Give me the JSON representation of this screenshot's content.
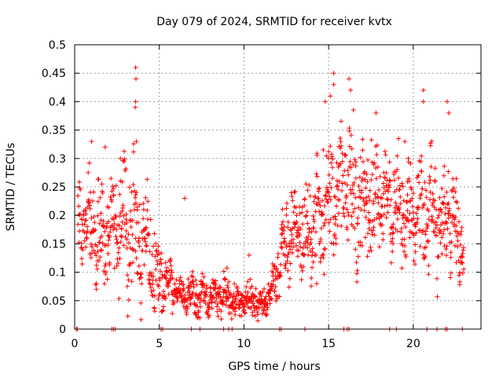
{
  "chart_data": {
    "type": "scatter",
    "title": "Day 079 of 2024, SRMTID for receiver kvtx",
    "xlabel": "GPS time / hours",
    "ylabel": "SRMTID / TECUs",
    "xlim": [
      0,
      24
    ],
    "ylim": [
      0,
      0.5
    ],
    "xticks": [
      0,
      5,
      10,
      15,
      20
    ],
    "xtick_labels": [
      "0",
      "5",
      "10",
      "15",
      "20"
    ],
    "yticks": [
      0,
      0.05,
      0.1,
      0.15,
      0.2,
      0.25,
      0.3,
      0.35,
      0.4,
      0.45,
      0.5
    ],
    "ytick_labels": [
      "0",
      "0.05",
      "0.1",
      "0.15",
      "0.2",
      "0.25",
      "0.3",
      "0.35",
      "0.4",
      "0.45",
      "0.5"
    ],
    "grid": true,
    "marker": "+",
    "color": "#ff0000",
    "profile": {
      "note": "approximate median SRMTID vs hour (data values read off the plot)",
      "x": [
        0,
        0.5,
        1,
        1.5,
        2,
        2.5,
        3,
        3.5,
        4,
        4.5,
        5,
        5.5,
        6,
        6.5,
        7,
        7.5,
        8,
        8.5,
        9,
        9.5,
        10,
        10.5,
        11,
        11.5,
        12,
        12.5,
        13,
        13.5,
        14,
        14.5,
        15,
        15.5,
        16,
        16.5,
        17,
        17.5,
        18,
        18.5,
        19,
        19.5,
        20,
        20.5,
        21,
        21.5,
        22,
        22.5,
        23
      ],
      "y": [
        0.2,
        0.2,
        0.18,
        0.17,
        0.17,
        0.18,
        0.17,
        0.17,
        0.16,
        0.12,
        0.09,
        0.08,
        0.07,
        0.06,
        0.06,
        0.06,
        0.06,
        0.06,
        0.06,
        0.05,
        0.05,
        0.05,
        0.04,
        0.06,
        0.1,
        0.16,
        0.18,
        0.16,
        0.18,
        0.2,
        0.23,
        0.25,
        0.24,
        0.22,
        0.22,
        0.23,
        0.24,
        0.23,
        0.21,
        0.2,
        0.2,
        0.21,
        0.2,
        0.19,
        0.2,
        0.17,
        0.14
      ]
    },
    "spread": {
      "x": [
        0,
        2,
        3.5,
        4.5,
        6,
        9,
        11.5,
        12.5,
        14,
        15.5,
        17,
        19,
        21,
        23
      ],
      "y": [
        0.04,
        0.06,
        0.07,
        0.05,
        0.02,
        0.02,
        0.015,
        0.04,
        0.06,
        0.07,
        0.06,
        0.05,
        0.06,
        0.04
      ]
    },
    "outliers": [
      {
        "x": 3.6,
        "y": 0.46
      },
      {
        "x": 3.62,
        "y": 0.44
      },
      {
        "x": 3.6,
        "y": 0.4
      },
      {
        "x": 3.58,
        "y": 0.39
      },
      {
        "x": 3.65,
        "y": 0.33
      },
      {
        "x": 1.0,
        "y": 0.33
      },
      {
        "x": 1.8,
        "y": 0.32
      },
      {
        "x": 2.7,
        "y": 0.3
      },
      {
        "x": 15.3,
        "y": 0.45
      },
      {
        "x": 15.3,
        "y": 0.43
      },
      {
        "x": 16.2,
        "y": 0.44
      },
      {
        "x": 16.3,
        "y": 0.42
      },
      {
        "x": 14.8,
        "y": 0.4
      },
      {
        "x": 15.1,
        "y": 0.41
      },
      {
        "x": 20.6,
        "y": 0.42
      },
      {
        "x": 20.6,
        "y": 0.4
      },
      {
        "x": 22.0,
        "y": 0.4
      },
      {
        "x": 22.1,
        "y": 0.38
      },
      {
        "x": 17.8,
        "y": 0.38
      },
      {
        "x": 19.5,
        "y": 0.33
      },
      {
        "x": 12.8,
        "y": 0.24
      },
      {
        "x": 6.5,
        "y": 0.23
      },
      {
        "x": 10.3,
        "y": 0.13
      },
      {
        "x": 14.3,
        "y": 0.08
      }
    ],
    "zero_points_x": [
      0.1,
      0.15,
      2.2,
      2.3,
      2.4,
      5.1,
      5.2,
      6.9,
      7.4,
      8.8,
      9.1,
      9.3,
      12.1,
      12.2,
      13.6,
      15.9,
      16.1,
      16.2,
      18.6,
      19.0,
      20.8,
      21.4,
      21.9,
      22.0,
      22.9
    ]
  }
}
